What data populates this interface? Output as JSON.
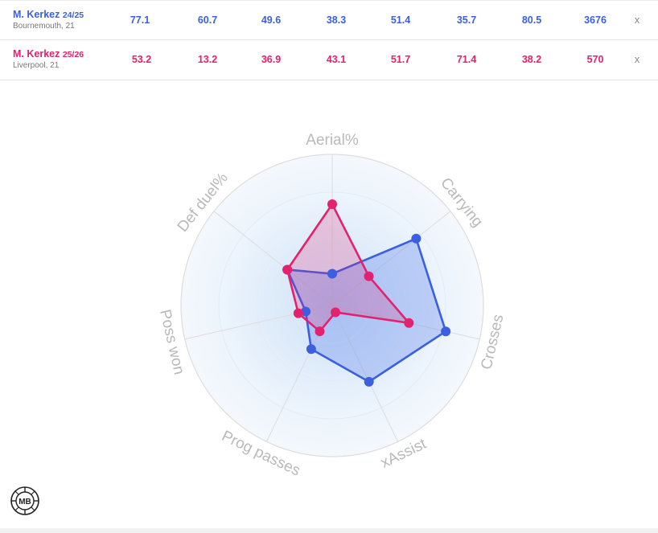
{
  "players": [
    {
      "name": "M. Kerkez",
      "season": "24/25",
      "team": "Bournemouth, 21",
      "color": "#3b5fe0",
      "values": [
        "77.1",
        "60.7",
        "49.6",
        "38.3",
        "51.4",
        "35.7",
        "80.5",
        "3676"
      ],
      "remove": "x"
    },
    {
      "name": "M. Kerkez",
      "season": "25/26",
      "team": "Liverpool, 21",
      "color": "#e2216f",
      "values": [
        "53.2",
        "13.2",
        "36.9",
        "43.1",
        "51.7",
        "71.4",
        "38.2",
        "570"
      ],
      "remove": "x"
    }
  ],
  "logo": {
    "text": "MB",
    "icon": "mb-logo-icon"
  },
  "chart_data": {
    "type": "radar",
    "axes": [
      "Aerial%",
      "Carrying",
      "Crosses",
      "xAssist",
      "Prog passes",
      "Poss won",
      "Def duel%"
    ],
    "range": [
      0,
      100
    ],
    "grid": true,
    "series": [
      {
        "name": "M. Kerkez 24/25",
        "color": "#3b5fe0",
        "values": [
          21,
          71,
          77,
          56,
          32,
          18,
          38
        ]
      },
      {
        "name": "M. Kerkez 25/26",
        "color": "#e2216f",
        "values": [
          67,
          31,
          52,
          5,
          19,
          23,
          38
        ]
      }
    ]
  }
}
